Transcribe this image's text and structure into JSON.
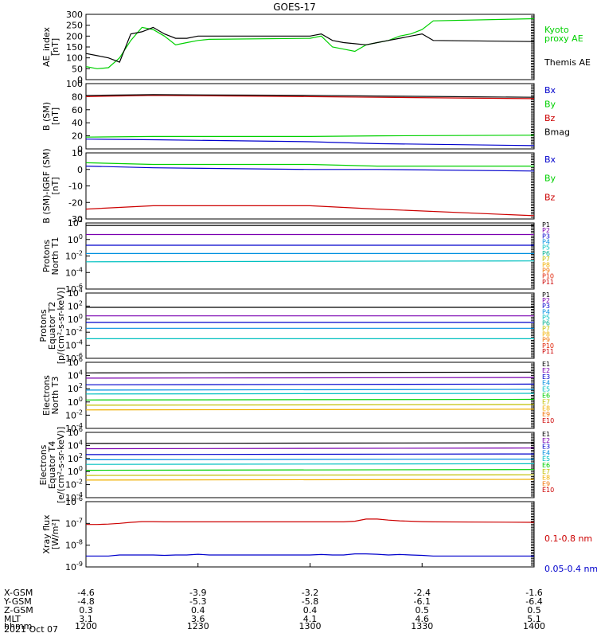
{
  "title": "GOES-17",
  "footer_date": "2021 Oct 07",
  "ephemeris": {
    "row_labels": [
      "X-GSM",
      "Y-GSM",
      "Z-GSM",
      "MLT",
      "hhmm"
    ],
    "columns": [
      {
        "values": [
          "-4.6",
          "-4.8",
          "0.3",
          "3.1",
          "1200"
        ]
      },
      {
        "values": [
          "-3.9",
          "-5.3",
          "0.4",
          "3.6",
          "1230"
        ]
      },
      {
        "values": [
          "-3.2",
          "-5.8",
          "0.4",
          "4.1",
          "1300"
        ]
      },
      {
        "values": [
          "-2.4",
          "-6.1",
          "0.5",
          "4.6",
          "1330"
        ]
      },
      {
        "values": [
          "-1.6",
          "-6.4",
          "0.5",
          "5.1",
          "1400"
        ]
      }
    ]
  },
  "chart_data": [
    {
      "type": "line",
      "ylabel": [
        "AE_index",
        "[nT]"
      ],
      "ylim": [
        0,
        300
      ],
      "yscale": "linear",
      "yticks": [
        0,
        50,
        100,
        150,
        200,
        250,
        300
      ],
      "x": [
        1200,
        1205,
        1210,
        1215,
        1220,
        1225,
        1230,
        1235,
        1240,
        1245,
        1250,
        1255,
        1300,
        1305,
        1310,
        1315,
        1320,
        1325,
        1330,
        1335,
        1340,
        1345,
        1350,
        1355,
        1400
      ],
      "series": [
        {
          "name": "Kyoto proxy AE",
          "color": "#00d000",
          "labels": [
            "Kyoto",
            "proxy AE"
          ],
          "values": [
            60,
            50,
            55,
            100,
            180,
            240,
            230,
            200,
            160,
            170,
            180,
            185,
            190,
            200,
            150,
            140,
            130,
            160,
            170,
            180,
            200,
            210,
            230,
            270,
            280
          ]
        },
        {
          "name": "Themis AE",
          "color": "#000000",
          "labels": [
            "Themis AE"
          ],
          "values": [
            120,
            110,
            100,
            80,
            210,
            220,
            240,
            210,
            190,
            190,
            200,
            200,
            200,
            210,
            180,
            170,
            165,
            160,
            170,
            180,
            190,
            200,
            210,
            180,
            175
          ]
        }
      ]
    },
    {
      "type": "line",
      "ylabel": [
        "B (SM)",
        "[nT]"
      ],
      "ylim": [
        0,
        100
      ],
      "yscale": "linear",
      "yticks": [
        0,
        20,
        40,
        60,
        80,
        100
      ],
      "x": [
        1200,
        1230,
        1300,
        1330,
        1400
      ],
      "series": [
        {
          "name": "Bx",
          "color": "#0000cc",
          "values": [
            15,
            14,
            11,
            8,
            5
          ]
        },
        {
          "name": "By",
          "color": "#00d000",
          "values": [
            18,
            19,
            19,
            20,
            21
          ]
        },
        {
          "name": "Bz",
          "color": "#cc0000",
          "values": [
            80,
            82,
            80,
            79,
            77
          ]
        },
        {
          "name": "Bmag",
          "color": "#000000",
          "values": [
            82,
            83,
            82,
            81,
            79
          ]
        }
      ]
    },
    {
      "type": "line",
      "ylabel": [
        "B (SM)-IGRF (SM)",
        "[nT]"
      ],
      "ylim": [
        -30,
        10
      ],
      "yscale": "linear",
      "yticks": [
        -30,
        -20,
        -10,
        0,
        10
      ],
      "x": [
        1200,
        1230,
        1300,
        1330,
        1400
      ],
      "series": [
        {
          "name": "Bx",
          "color": "#0000cc",
          "values": [
            2,
            1,
            0,
            0,
            -1
          ]
        },
        {
          "name": "By",
          "color": "#00d000",
          "values": [
            4,
            3,
            3,
            2,
            2
          ]
        },
        {
          "name": "Bz",
          "color": "#cc0000",
          "values": [
            -24,
            -22,
            -22,
            -24,
            -28
          ]
        }
      ]
    },
    {
      "type": "line",
      "ylabel": [
        "Protons",
        "North T1"
      ],
      "ylim": [
        -6,
        2
      ],
      "yscale": "log",
      "ytick_labels": [
        "10^-6",
        "10^-4",
        "10^-2",
        "10^0",
        "10^2"
      ],
      "yticks": [
        -6,
        -4,
        -2,
        0,
        2
      ],
      "x": [
        1200,
        1400
      ],
      "channel_labels": [
        "P1",
        "P2",
        "P3",
        "P4",
        "P5",
        "P6",
        "P7",
        "P8",
        "P9",
        "P10",
        "P11"
      ],
      "channel_colors": [
        "#000000",
        "#7a00b0",
        "#0000cc",
        "#0090e0",
        "#00c0c0",
        "#00b090",
        "#c0c000",
        "#f0b000",
        "#f07000",
        "#e02000",
        "#cc0000"
      ],
      "series": [
        {
          "name": "P1",
          "color": "#000000",
          "values": [
            1.7,
            1.7
          ]
        },
        {
          "name": "P2",
          "color": "#7a00b0",
          "values": [
            0.6,
            0.6
          ]
        },
        {
          "name": "P3",
          "color": "#0000cc",
          "values": [
            -0.7,
            -0.7
          ]
        },
        {
          "name": "P4",
          "color": "#0090e0",
          "values": [
            -1.7,
            -1.7
          ]
        },
        {
          "name": "P5",
          "color": "#00c0c0",
          "values": [
            -2.7,
            -2.6
          ]
        }
      ]
    },
    {
      "type": "line",
      "ylabel": [
        "Protons",
        "Equator T2",
        "[p/(cm²-s-sr-keV)]"
      ],
      "ylim": [
        -6,
        4
      ],
      "yscale": "log",
      "ytick_labels": [
        "10^-6",
        "10^-4",
        "10^-2",
        "10^0",
        "10^2",
        "10^4"
      ],
      "yticks": [
        -6,
        -4,
        -2,
        0,
        2,
        4
      ],
      "x": [
        1200,
        1400
      ],
      "channel_labels": [
        "P1",
        "P2",
        "P3",
        "P4",
        "P5",
        "P6",
        "P7",
        "P8",
        "P9",
        "P10",
        "P11"
      ],
      "channel_colors": [
        "#000000",
        "#7a00b0",
        "#0000cc",
        "#0090e0",
        "#00c0c0",
        "#00b090",
        "#c0c000",
        "#f0b000",
        "#f07000",
        "#e02000",
        "#cc0000"
      ],
      "series": [
        {
          "name": "P1",
          "color": "#000000",
          "values": [
            1.8,
            1.8
          ]
        },
        {
          "name": "P2",
          "color": "#7a00b0",
          "values": [
            0.5,
            0.5
          ]
        },
        {
          "name": "P3",
          "color": "#0000cc",
          "values": [
            -0.5,
            -0.5
          ]
        },
        {
          "name": "P4",
          "color": "#0090e0",
          "values": [
            -1.4,
            -1.4
          ]
        },
        {
          "name": "P5",
          "color": "#00c0c0",
          "values": [
            -3.0,
            -3.0
          ]
        }
      ]
    },
    {
      "type": "line",
      "ylabel": [
        "Electrons",
        "North T3"
      ],
      "ylim": [
        -4,
        6
      ],
      "yscale": "log",
      "ytick_labels": [
        "10^-4",
        "10^-2",
        "10^0",
        "10^2",
        "10^4",
        "10^6"
      ],
      "yticks": [
        -4,
        -2,
        0,
        2,
        4,
        6
      ],
      "x": [
        1200,
        1400
      ],
      "channel_labels": [
        "E1",
        "E2",
        "E3",
        "E4",
        "E5",
        "E6",
        "E7",
        "E8",
        "E9",
        "E10"
      ],
      "channel_colors": [
        "#000000",
        "#7a00b0",
        "#0000cc",
        "#0090e0",
        "#00c0c0",
        "#00d000",
        "#c0c000",
        "#f0b000",
        "#f07000",
        "#cc0000"
      ],
      "series": [
        {
          "name": "E1",
          "color": "#000000",
          "values": [
            4.4,
            4.5
          ]
        },
        {
          "name": "E2",
          "color": "#7a00b0",
          "values": [
            3.6,
            3.7
          ]
        },
        {
          "name": "E3",
          "color": "#0000cc",
          "values": [
            2.6,
            2.7
          ]
        },
        {
          "name": "E4",
          "color": "#0090e0",
          "values": [
            1.8,
            1.9
          ]
        },
        {
          "name": "E5",
          "color": "#00c0c0",
          "values": [
            1.2,
            1.3
          ]
        },
        {
          "name": "E6",
          "color": "#00d000",
          "values": [
            0.3,
            0.4
          ]
        },
        {
          "name": "E7",
          "color": "#c0c000",
          "values": [
            -0.5,
            -0.4
          ]
        },
        {
          "name": "E8",
          "color": "#f0b000",
          "values": [
            -1.2,
            -1.1
          ]
        }
      ]
    },
    {
      "type": "line",
      "ylabel": [
        "Electrons",
        "Equator T4",
        "[e/(cm²-s-sr-keV)]"
      ],
      "ylim": [
        -4,
        6
      ],
      "yscale": "log",
      "ytick_labels": [
        "10^-4",
        "10^-2",
        "10^0",
        "10^2",
        "10^4",
        "10^6"
      ],
      "yticks": [
        -4,
        -2,
        0,
        2,
        4,
        6
      ],
      "x": [
        1200,
        1400
      ],
      "channel_labels": [
        "E1",
        "E2",
        "E3",
        "E4",
        "E5",
        "E6",
        "E7",
        "E8",
        "E9",
        "E10"
      ],
      "channel_colors": [
        "#000000",
        "#7a00b0",
        "#0000cc",
        "#0090e0",
        "#00c0c0",
        "#00d000",
        "#c0c000",
        "#f0b000",
        "#f07000",
        "#cc0000"
      ],
      "series": [
        {
          "name": "E1",
          "color": "#000000",
          "values": [
            4.3,
            4.4
          ]
        },
        {
          "name": "E2",
          "color": "#7a00b0",
          "values": [
            3.5,
            3.6
          ]
        },
        {
          "name": "E3",
          "color": "#0000cc",
          "values": [
            2.6,
            2.7
          ]
        },
        {
          "name": "E4",
          "color": "#0090e0",
          "values": [
            1.8,
            1.9
          ]
        },
        {
          "name": "E5",
          "color": "#00c0c0",
          "values": [
            1.1,
            1.2
          ]
        },
        {
          "name": "E6",
          "color": "#00d000",
          "values": [
            0.2,
            0.3
          ]
        },
        {
          "name": "E7",
          "color": "#c0c000",
          "values": [
            -0.6,
            -0.5
          ]
        },
        {
          "name": "E8",
          "color": "#f0b000",
          "values": [
            -1.3,
            -1.2
          ]
        }
      ]
    },
    {
      "type": "line",
      "ylabel": [
        "Xray flux",
        "[W/m²]"
      ],
      "ylim": [
        -9,
        -6
      ],
      "yscale": "log",
      "ytick_labels": [
        "10^-9",
        "10^-8",
        "10^-7",
        "10^-6"
      ],
      "yticks": [
        -9,
        -8,
        -7,
        -6
      ],
      "x": [
        1200,
        1205,
        1210,
        1215,
        1220,
        1225,
        1230,
        1235,
        1240,
        1245,
        1250,
        1255,
        1300,
        1305,
        1310,
        1315,
        1320,
        1325,
        1330,
        1335,
        1340,
        1345,
        1350,
        1355,
        1400
      ],
      "series": [
        {
          "name": "0.1-0.8 nm",
          "color": "#cc0000",
          "labels": [
            "0.1-0.8 nm"
          ],
          "values": [
            -7.05,
            -7.05,
            -7.03,
            -7.0,
            -6.95,
            -6.92,
            -6.92,
            -6.93,
            -6.93,
            -6.93,
            -6.93,
            -6.93,
            -6.93,
            -6.93,
            -6.93,
            -6.93,
            -6.9,
            -6.8,
            -6.8,
            -6.85,
            -6.88,
            -6.9,
            -6.92,
            -6.93,
            -6.95
          ]
        },
        {
          "name": "0.05-0.4 nm",
          "color": "#0000cc",
          "labels": [
            "0.05-0.4 nm"
          ],
          "values": [
            -8.5,
            -8.5,
            -8.5,
            -8.45,
            -8.45,
            -8.45,
            -8.45,
            -8.47,
            -8.45,
            -8.45,
            -8.42,
            -8.45,
            -8.45,
            -8.43,
            -8.45,
            -8.45,
            -8.4,
            -8.4,
            -8.42,
            -8.45,
            -8.43,
            -8.45,
            -8.47,
            -8.5,
            -8.5
          ]
        }
      ]
    }
  ]
}
